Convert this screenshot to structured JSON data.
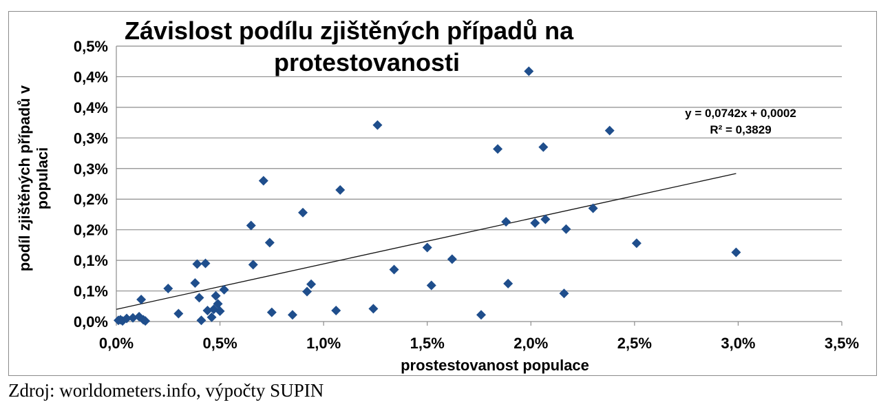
{
  "chart_data": {
    "type": "scatter",
    "title_lines": [
      "Závislost podílu zjištěných případů na",
      "protestovanosti"
    ],
    "xlabel": "prostestovanost populace",
    "ylabel_lines": [
      "podíl zjištěných případů v",
      "populaci"
    ],
    "x_ticks": [
      "0,0%",
      "0,5%",
      "1,0%",
      "1,5%",
      "2,0%",
      "2,5%",
      "3,0%",
      "3,5%"
    ],
    "y_ticks": [
      "0,0%",
      "0,1%",
      "0,1%",
      "0,2%",
      "0,2%",
      "0,3%",
      "0,3%",
      "0,4%",
      "0,4%",
      "0,5%"
    ],
    "xlim": [
      0,
      0.035
    ],
    "ylim": [
      0,
      0.0045
    ],
    "grid": "horizontal",
    "marker": "diamond",
    "marker_color": "#1F4E8C",
    "points": [
      [
        0.0001,
        2e-05
      ],
      [
        0.0002,
        3e-05
      ],
      [
        0.0003,
        1e-05
      ],
      [
        0.0005,
        5e-05
      ],
      [
        0.0008,
        6e-05
      ],
      [
        0.0011,
        8e-05
      ],
      [
        0.0012,
        0.00036
      ],
      [
        0.0013,
        3e-05
      ],
      [
        0.0014,
        1e-05
      ],
      [
        0.0025,
        0.00054
      ],
      [
        0.003,
        0.00013
      ],
      [
        0.0038,
        0.00063
      ],
      [
        0.0039,
        0.00094
      ],
      [
        0.004,
        0.00039
      ],
      [
        0.0041,
        2e-05
      ],
      [
        0.0043,
        0.00095
      ],
      [
        0.0044,
        0.00018
      ],
      [
        0.0046,
        7e-05
      ],
      [
        0.0047,
        0.0002
      ],
      [
        0.0048,
        0.00042
      ],
      [
        0.0049,
        0.00029
      ],
      [
        0.005,
        0.00017
      ],
      [
        0.0052,
        0.00052
      ],
      [
        0.0065,
        0.00157
      ],
      [
        0.0066,
        0.00093
      ],
      [
        0.0071,
        0.0023
      ],
      [
        0.0074,
        0.00129
      ],
      [
        0.0075,
        0.00015
      ],
      [
        0.0085,
        0.00011
      ],
      [
        0.009,
        0.00178
      ],
      [
        0.0092,
        0.00049
      ],
      [
        0.0094,
        0.00061
      ],
      [
        0.0106,
        0.00018
      ],
      [
        0.0108,
        0.00215
      ],
      [
        0.0124,
        0.00021
      ],
      [
        0.0126,
        0.00321
      ],
      [
        0.0134,
        0.00085
      ],
      [
        0.015,
        0.00121
      ],
      [
        0.0152,
        0.00059
      ],
      [
        0.0162,
        0.00102
      ],
      [
        0.0176,
        0.00011
      ],
      [
        0.0184,
        0.00282
      ],
      [
        0.0188,
        0.00163
      ],
      [
        0.0189,
        0.00062
      ],
      [
        0.0199,
        0.00409
      ],
      [
        0.0202,
        0.00161
      ],
      [
        0.0206,
        0.00285
      ],
      [
        0.0207,
        0.00167
      ],
      [
        0.0216,
        0.00046
      ],
      [
        0.0217,
        0.00151
      ],
      [
        0.023,
        0.00185
      ],
      [
        0.0238,
        0.00312
      ],
      [
        0.0251,
        0.00128
      ],
      [
        0.0299,
        0.00113
      ]
    ],
    "trendline": {
      "x_range": [
        0,
        0.0299
      ],
      "slope": 0.0742,
      "intercept": 0.0002,
      "equation": "y = 0,0742x + 0,0002",
      "r_squared": "R² = 0,3829"
    }
  },
  "source": "Zdroj: worldometers.info, výpočty SUPIN"
}
